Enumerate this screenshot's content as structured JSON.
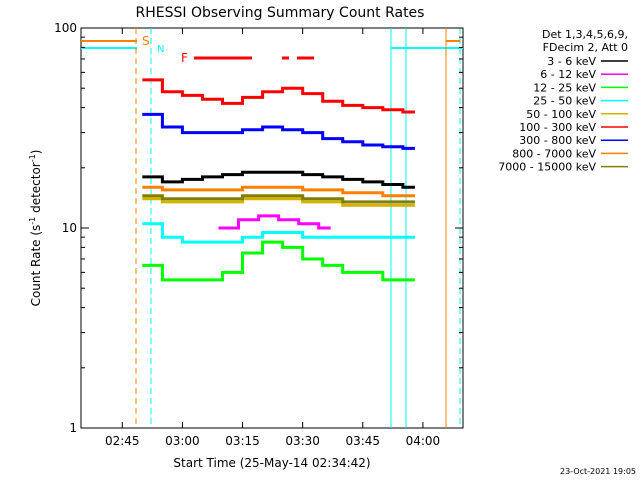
{
  "chart_data": {
    "type": "line",
    "title": "RHESSI Observing Summary Count Rates",
    "xlabel": "Start Time (25-May-14 02:34:42)",
    "ylabel_main": "Count Rate (s",
    "ylabel_sup1": "-1",
    "ylabel_mid": " detector",
    "ylabel_sup2": "-1",
    "ylabel_end": ")",
    "xlim": [
      "02:34:42",
      "04:10:00"
    ],
    "ylim": [
      1,
      100
    ],
    "y_scale": "log",
    "x_ticks": [
      "02:45",
      "03:00",
      "03:15",
      "03:30",
      "03:45",
      "04:00"
    ],
    "y_ticks": [
      "1",
      "10",
      "100"
    ],
    "legend_header": [
      "Det 1,3,4,5,6,9,",
      "FDecim 2, Att 0"
    ],
    "legend_placement": "right",
    "series": [
      {
        "name": "3 - 6 keV",
        "color": "#000000",
        "x": [
          "02:50",
          "02:55",
          "03:00",
          "03:05",
          "03:10",
          "03:15",
          "03:20",
          "03:25",
          "03:30",
          "03:35",
          "03:40",
          "03:45",
          "03:50",
          "03:55"
        ],
        "values": [
          18,
          17,
          17.5,
          18,
          18.5,
          19,
          19,
          19,
          18.5,
          18,
          17.5,
          17,
          16.5,
          16
        ]
      },
      {
        "name": "6 - 12 keV",
        "color": "#ff00ff",
        "x": [
          "03:09",
          "03:14",
          "03:19",
          "03:24",
          "03:29",
          "03:34"
        ],
        "values": [
          10,
          11,
          11.5,
          11,
          10.5,
          10
        ]
      },
      {
        "name": "12 - 25 keV",
        "color": "#00ff00",
        "x": [
          "02:50",
          "02:55",
          "03:00",
          "03:05",
          "03:10",
          "03:15",
          "03:20",
          "03:25",
          "03:30",
          "03:35",
          "03:40",
          "03:45",
          "03:50",
          "03:55"
        ],
        "values": [
          6.5,
          5.5,
          5.5,
          5.5,
          6,
          7.5,
          8.5,
          8,
          7,
          6.5,
          6,
          6,
          5.5,
          5.5
        ]
      },
      {
        "name": "25 - 50 keV",
        "color": "#00ffff",
        "x": [
          "02:50",
          "02:55",
          "03:00",
          "03:05",
          "03:10",
          "03:15",
          "03:20",
          "03:25",
          "03:30",
          "03:35",
          "03:40",
          "03:45",
          "03:50",
          "03:55"
        ],
        "values": [
          10.5,
          9,
          8.5,
          8.5,
          8.5,
          9,
          9.5,
          9.5,
          9,
          9,
          9,
          9,
          9,
          9
        ]
      },
      {
        "name": "50 - 100 keV",
        "color": "#d4b000",
        "x": [
          "02:50",
          "02:55",
          "03:00",
          "03:05",
          "03:10",
          "03:15",
          "03:20",
          "03:25",
          "03:30",
          "03:35",
          "03:40",
          "03:45",
          "03:50",
          "03:55"
        ],
        "values": [
          14,
          13.5,
          13.5,
          13.5,
          13.5,
          14,
          14,
          14,
          13.5,
          13.5,
          13,
          13,
          13,
          13
        ]
      },
      {
        "name": "100 - 300 keV",
        "color": "#ff0000",
        "x": [
          "02:50",
          "02:55",
          "03:00",
          "03:05",
          "03:10",
          "03:15",
          "03:20",
          "03:25",
          "03:30",
          "03:35",
          "03:40",
          "03:45",
          "03:50",
          "03:55"
        ],
        "values": [
          55,
          48,
          46,
          44,
          42,
          45,
          48,
          50,
          47,
          43,
          41,
          40,
          39,
          38
        ]
      },
      {
        "name": "300 - 800 keV",
        "color": "#0000ff",
        "x": [
          "02:50",
          "02:55",
          "03:00",
          "03:05",
          "03:10",
          "03:15",
          "03:20",
          "03:25",
          "03:30",
          "03:35",
          "03:40",
          "03:45",
          "03:50",
          "03:55"
        ],
        "values": [
          37,
          32,
          30,
          30,
          30,
          31,
          32,
          31,
          30,
          28,
          27,
          26,
          25.5,
          25
        ]
      },
      {
        "name": "800 - 7000 keV",
        "color": "#ff8000",
        "x": [
          "02:50",
          "02:55",
          "03:00",
          "03:05",
          "03:10",
          "03:15",
          "03:20",
          "03:25",
          "03:30",
          "03:35",
          "03:40",
          "03:45",
          "03:50",
          "03:55"
        ],
        "values": [
          16,
          15.5,
          15.5,
          15.5,
          15.5,
          16,
          16,
          16,
          15.5,
          15.5,
          15,
          15,
          14.5,
          14.5
        ]
      },
      {
        "name": "7000 - 15000 keV",
        "color": "#808000",
        "x": [
          "02:50",
          "02:55",
          "03:00",
          "03:05",
          "03:10",
          "03:15",
          "03:20",
          "03:25",
          "03:30",
          "03:35",
          "03:40",
          "03:45",
          "03:50",
          "03:55"
        ],
        "values": [
          14.5,
          14,
          14,
          14,
          14,
          14.5,
          14.5,
          14.5,
          14,
          14,
          13.5,
          13.5,
          13.5,
          13.5
        ]
      }
    ],
    "flags": [
      {
        "label": "S",
        "color": "#ff8000"
      },
      {
        "label": "N",
        "color": "#00ffff"
      },
      {
        "label": "F",
        "color": "#ff0000"
      }
    ],
    "timestamp": "23-Oct-2021 19:05"
  }
}
